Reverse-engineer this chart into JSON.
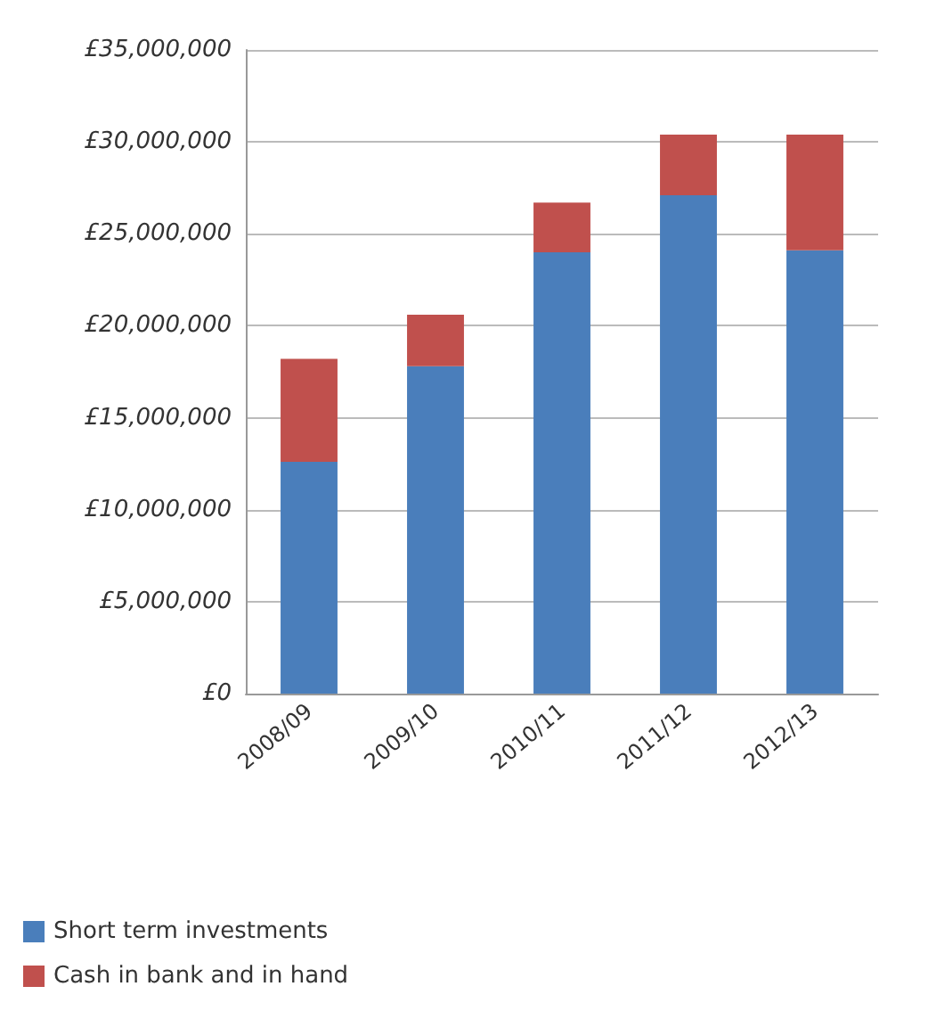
{
  "chart_data": {
    "type": "bar",
    "stacked": true,
    "categories": [
      "2008/09",
      "2009/10",
      "2010/11",
      "2011/12",
      "2012/13"
    ],
    "series": [
      {
        "name": "Short term investments",
        "color": "#4a7ebb",
        "values": [
          12600000,
          17800000,
          24000000,
          27100000,
          24100000
        ]
      },
      {
        "name": "Cash in bank and in hand",
        "color": "#c0504d",
        "values": [
          5600000,
          2800000,
          2700000,
          3300000,
          6300000
        ]
      }
    ],
    "ylim": [
      0,
      35000000
    ],
    "yticks": [
      {
        "value": 0,
        "label": "£0"
      },
      {
        "value": 5000000,
        "label": "£5,000,000"
      },
      {
        "value": 10000000,
        "label": "£10,000,000"
      },
      {
        "value": 15000000,
        "label": "£15,000,000"
      },
      {
        "value": 20000000,
        "label": "£20,000,000"
      },
      {
        "value": 25000000,
        "label": "£25,000,000"
      },
      {
        "value": 30000000,
        "label": "£30,000,000"
      },
      {
        "value": 35000000,
        "label": "£35,000,000"
      }
    ],
    "grid": "y",
    "legend": "bottom left"
  }
}
